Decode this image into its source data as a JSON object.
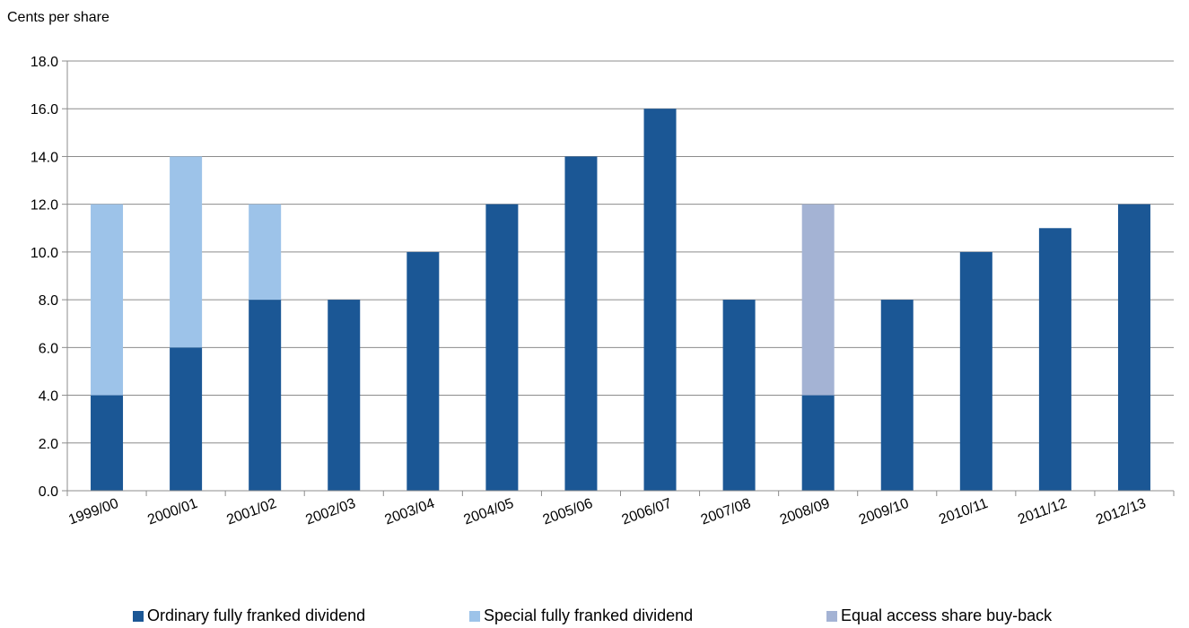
{
  "chart_data": {
    "type": "bar",
    "stacked": true,
    "ylabel": "Cents per share",
    "xlabel": "",
    "ylim": [
      0,
      18
    ],
    "yticks": [
      "0.0",
      "2.0",
      "4.0",
      "6.0",
      "8.0",
      "10.0",
      "12.0",
      "14.0",
      "16.0",
      "18.0"
    ],
    "grid": true,
    "legend_position": "bottom",
    "categories": [
      "1999/00",
      "2000/01",
      "2001/02",
      "2002/03",
      "2003/04",
      "2004/05",
      "2005/06",
      "2006/07",
      "2007/08",
      "2008/09",
      "2009/10",
      "2010/11",
      "2011/12",
      "2012/13"
    ],
    "series": [
      {
        "name": "Ordinary fully franked dividend",
        "color": "#1b5795",
        "values": [
          4,
          6,
          8,
          8,
          10,
          12,
          14,
          16,
          8,
          4,
          8,
          10,
          11,
          12
        ]
      },
      {
        "name": "Special fully franked dividend",
        "color": "#9dc3e9",
        "values": [
          8,
          8,
          4,
          0,
          0,
          0,
          0,
          0,
          0,
          0,
          0,
          0,
          0,
          0
        ]
      },
      {
        "name": "Equal access share buy-back",
        "color": "#a4b3d4",
        "values": [
          0,
          0,
          0,
          0,
          0,
          0,
          0,
          0,
          0,
          8,
          0,
          0,
          0,
          0
        ]
      }
    ]
  }
}
